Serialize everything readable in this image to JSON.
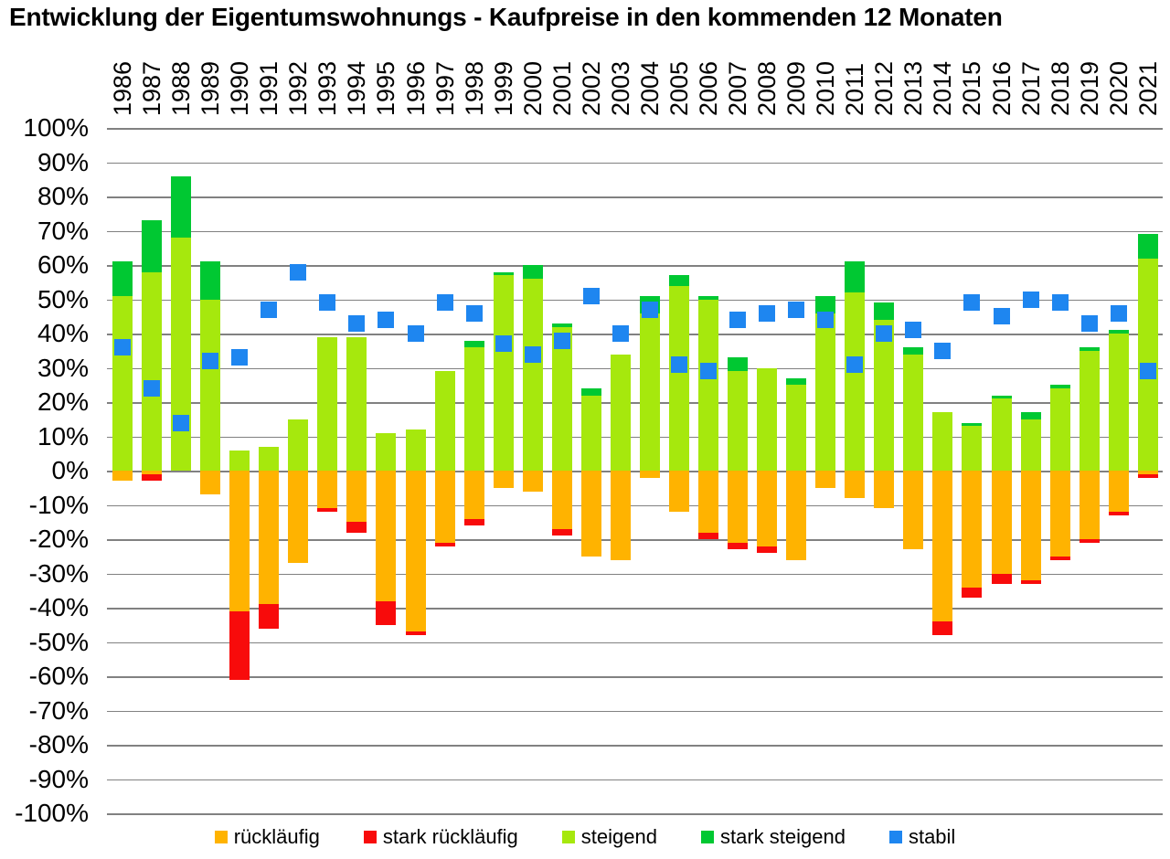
{
  "title": "Entwicklung der Eigentumswohnungs - Kaufpreise in den kommenden 12 Monaten",
  "y_axis": {
    "tick_labels": [
      "100%",
      "90%",
      "80%",
      "70%",
      "60%",
      "50%",
      "40%",
      "30%",
      "20%",
      "10%",
      "0%",
      "-10%",
      "-20%",
      "-30%",
      "-40%",
      "-50%",
      "-60%",
      "-70%",
      "-80%",
      "-90%",
      "-100%"
    ]
  },
  "chart_data": {
    "type": "bar",
    "stacked": true,
    "orientation": "vertical",
    "grid": true,
    "legend_position": "bottom",
    "ylim": [
      -100,
      100
    ],
    "ytick_step": 10,
    "categories": [
      "1986",
      "1987",
      "1988",
      "1989",
      "1990",
      "1991",
      "1992",
      "1993",
      "1994",
      "1995",
      "1996",
      "1997",
      "1998",
      "1999",
      "2000",
      "2001",
      "2002",
      "2003",
      "2004",
      "2005",
      "2006",
      "2007",
      "2008",
      "2009",
      "2010",
      "2011",
      "2012",
      "2013",
      "2014",
      "2015",
      "2016",
      "2017",
      "2018",
      "2019",
      "2020",
      "2021"
    ],
    "series": [
      {
        "name": "rückläufig",
        "role": "bar",
        "stack": "negative",
        "order": 1,
        "color": "#FFB300",
        "values": [
          -3,
          -1,
          0,
          -7,
          -41,
          -39,
          -27,
          -11,
          -15,
          -38,
          -47,
          -21,
          -14,
          -5,
          -6,
          -17,
          -25,
          -26,
          -2,
          -12,
          -18,
          -21,
          -22,
          -26,
          -5,
          -8,
          -11,
          -23,
          -44,
          -34,
          -30,
          -32,
          -25,
          -20,
          -12,
          -1
        ]
      },
      {
        "name": "stark rückläufig",
        "role": "bar",
        "stack": "negative",
        "order": 2,
        "color": "#F80B0B",
        "values": [
          0,
          -2,
          0,
          0,
          -20,
          -7,
          0,
          -1,
          -3,
          -7,
          -1,
          -1,
          -2,
          0,
          0,
          -2,
          0,
          0,
          0,
          0,
          -2,
          -2,
          -2,
          0,
          0,
          0,
          0,
          0,
          -4,
          -3,
          -3,
          -1,
          -1,
          -1,
          -1,
          -1
        ]
      },
      {
        "name": "steigend",
        "role": "bar",
        "stack": "positive",
        "order": 1,
        "color": "#A6E80D",
        "values": [
          51,
          58,
          68,
          50,
          6,
          7,
          15,
          39,
          39,
          11,
          12,
          29,
          36,
          57,
          56,
          42,
          22,
          34,
          46,
          54,
          50,
          29,
          30,
          25,
          46,
          52,
          44,
          34,
          17,
          13,
          21,
          15,
          24,
          35,
          40,
          62
        ]
      },
      {
        "name": "stark steigend",
        "role": "bar",
        "stack": "positive",
        "order": 2,
        "color": "#00C832",
        "values": [
          10,
          15,
          18,
          11,
          0,
          0,
          0,
          0,
          0,
          0,
          0,
          0,
          2,
          1,
          4,
          1,
          2,
          0,
          5,
          3,
          1,
          4,
          0,
          2,
          5,
          9,
          5,
          2,
          0,
          1,
          1,
          2,
          1,
          1,
          1,
          7
        ]
      },
      {
        "name": "stabil",
        "role": "marker",
        "marker": "square",
        "color": "#1E86F0",
        "values": [
          36,
          24,
          14,
          32,
          33,
          47,
          58,
          49,
          43,
          44,
          40,
          49,
          46,
          37,
          34,
          38,
          51,
          40,
          47,
          31,
          29,
          44,
          46,
          47,
          44,
          31,
          40,
          41,
          35,
          49,
          45,
          50,
          49,
          43,
          46,
          29
        ]
      }
    ]
  }
}
